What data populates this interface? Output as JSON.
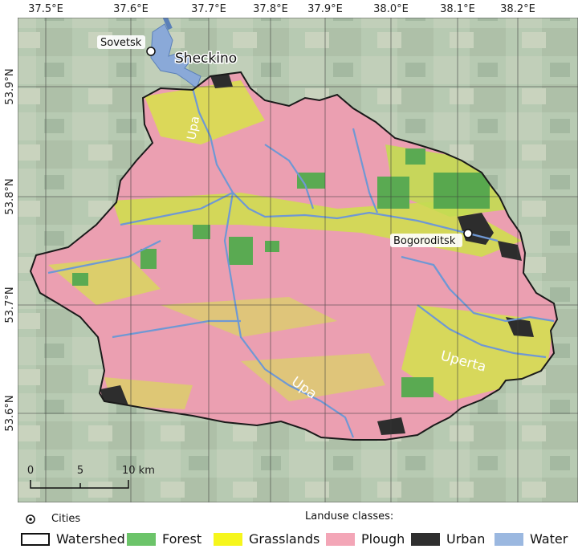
{
  "graticule": {
    "lon_labels": [
      "37.5°E",
      "37.6°E",
      "37.7°E",
      "37.8°E",
      "37.9°E",
      "38.0°E",
      "38.1°E",
      "38.2°E"
    ],
    "lat_labels": [
      "53.9°N",
      "53.8°N",
      "53.7°N",
      "53.6°N"
    ]
  },
  "cities": [
    {
      "name": "Sovetsk"
    },
    {
      "name": "Bogoroditsk"
    }
  ],
  "places": [
    {
      "name": "Sheckino"
    }
  ],
  "rivers": [
    {
      "name": "Upa"
    },
    {
      "name": "Upa"
    },
    {
      "name": "Uperta"
    }
  ],
  "scale_bar": {
    "labels": [
      "0",
      "5",
      "10 km"
    ]
  },
  "legend": {
    "cities_label": "Cities",
    "watershed_label": "Watershed",
    "landuse_title": "Landuse classes:",
    "classes": [
      {
        "label": "Forest",
        "color": "#6cc46a"
      },
      {
        "label": "Grasslands",
        "color": "#f6f61c"
      },
      {
        "label": "Plough",
        "color": "#f3a6b7"
      },
      {
        "label": "Urban",
        "color": "#2f2f2f"
      },
      {
        "label": "Water",
        "color": "#9bb8e0"
      }
    ]
  },
  "colors": {
    "satellite_bg": "#a9bfa4",
    "watershed_outline": "#1a1a1a",
    "river": "#7aa0d6"
  }
}
